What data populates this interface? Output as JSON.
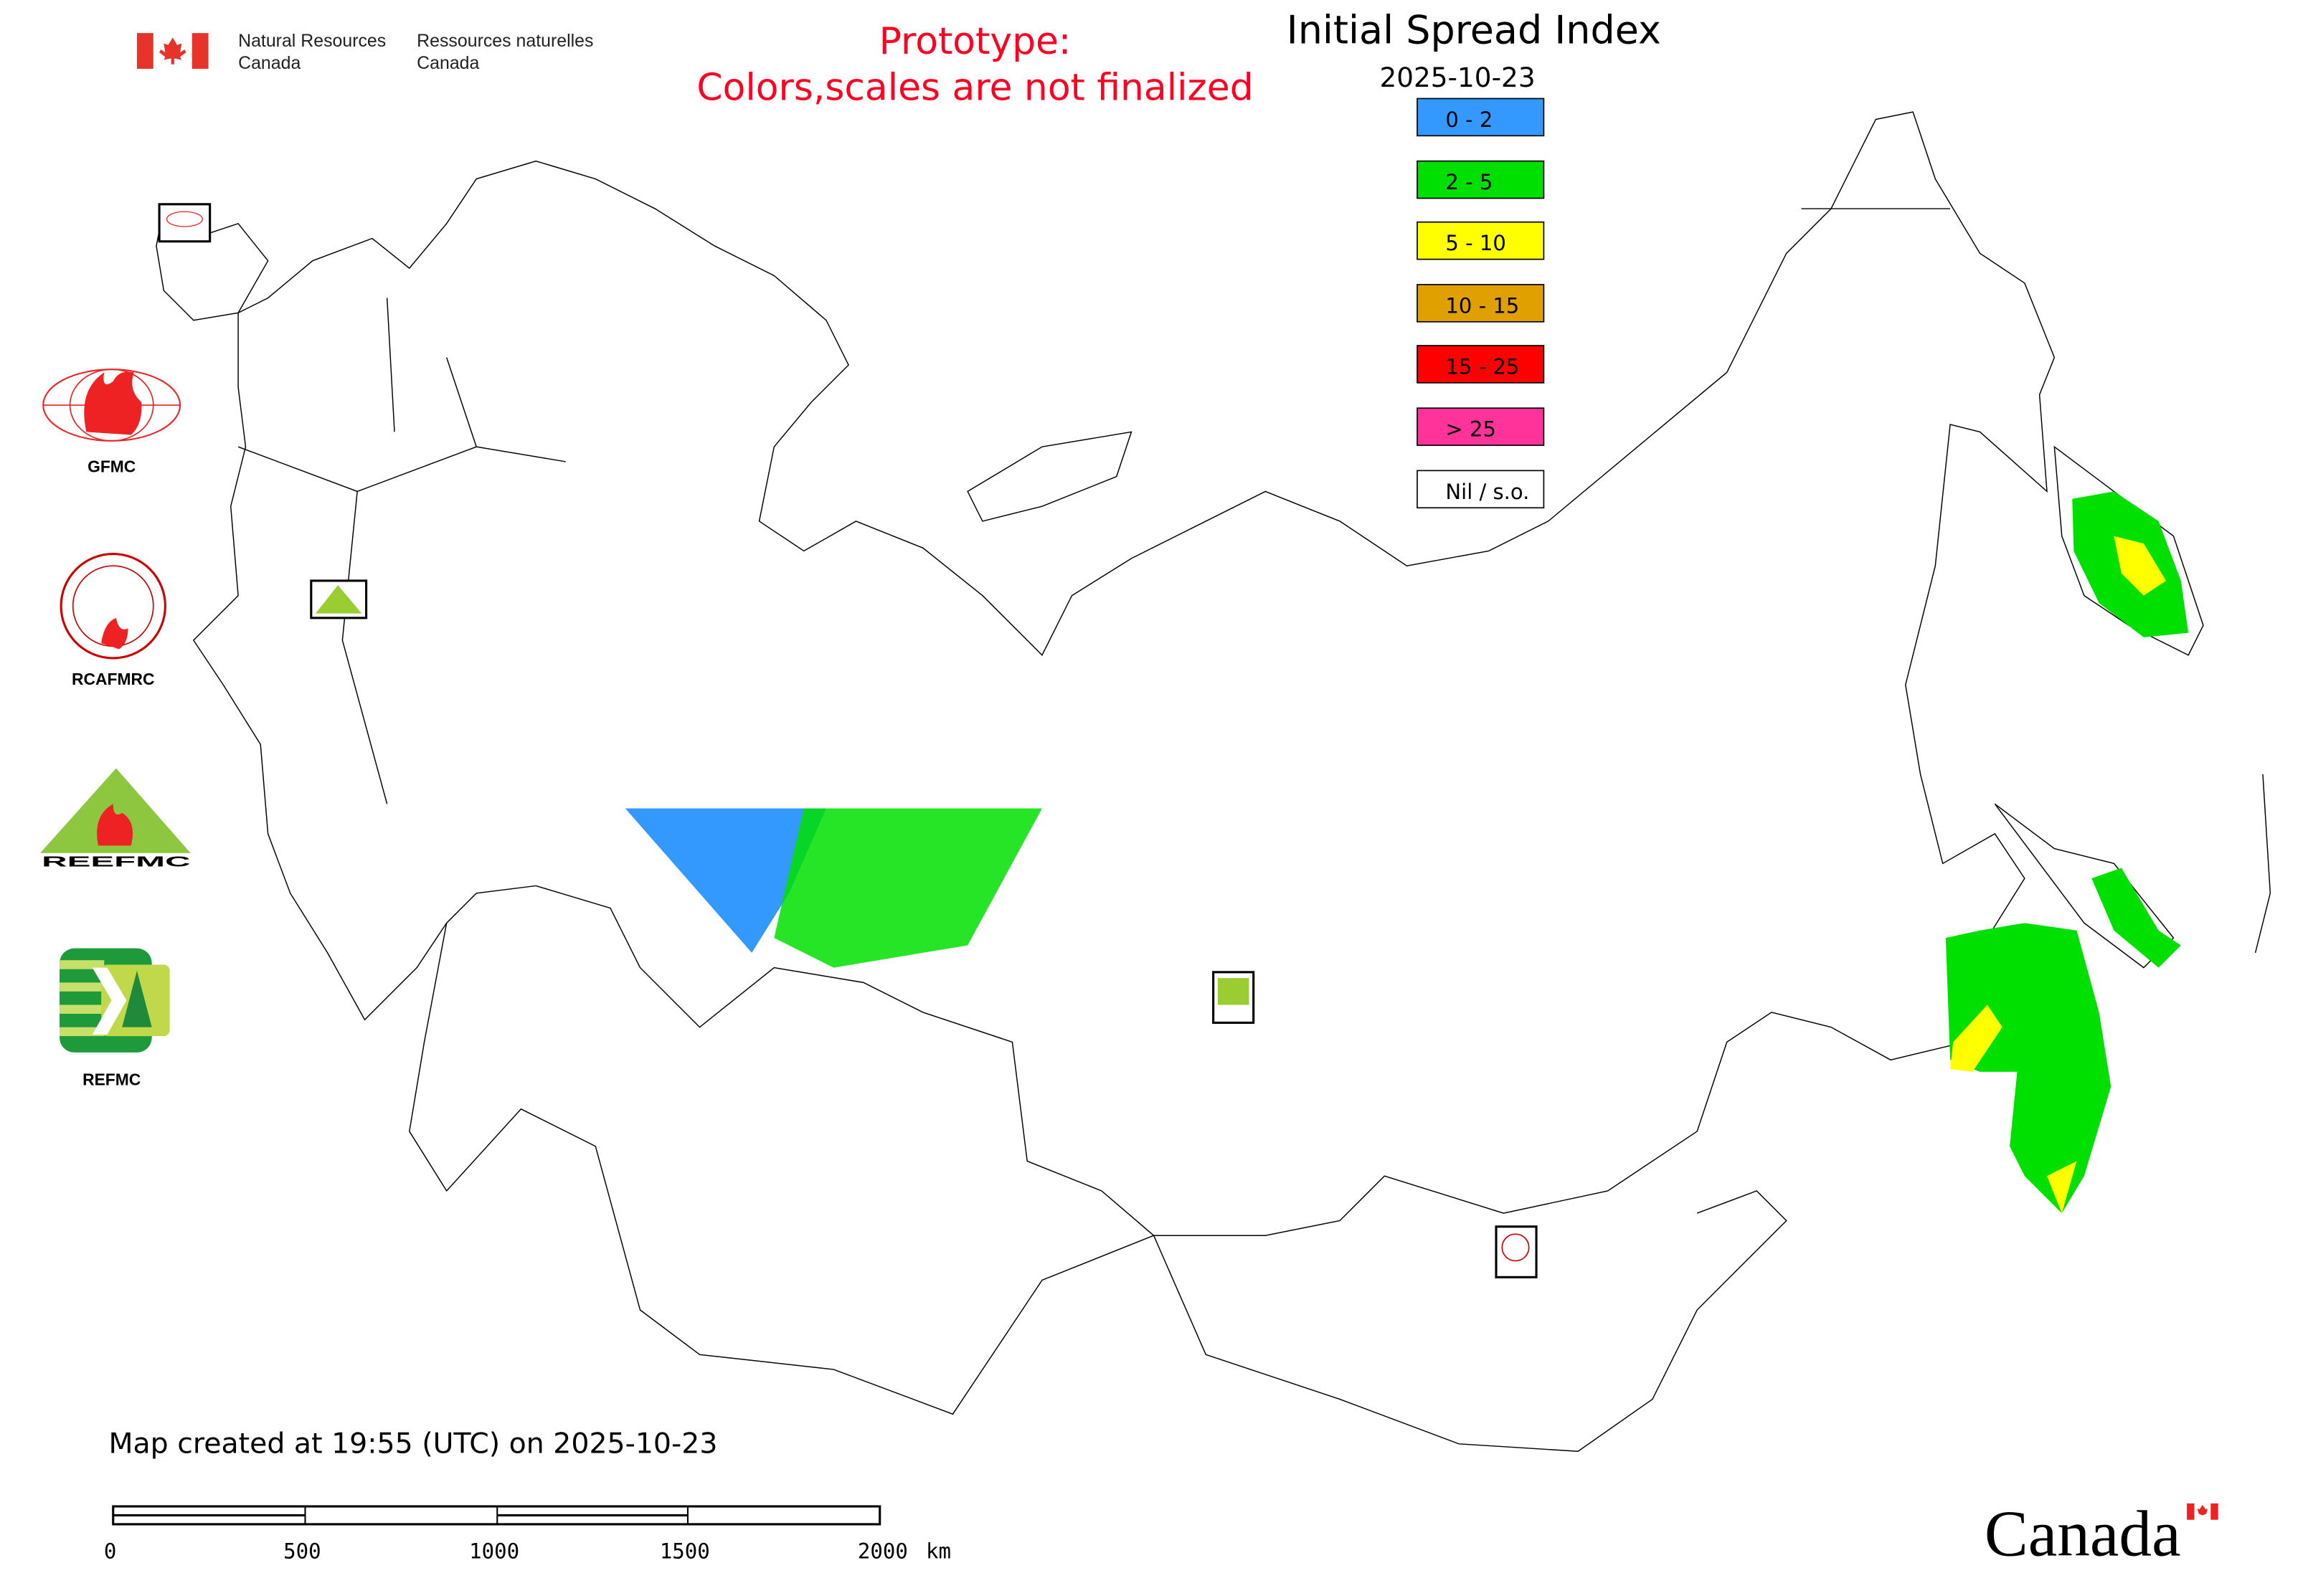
{
  "header": {
    "agency_en_line1": "Natural Resources",
    "agency_en_line2": "Canada",
    "agency_fr_line1": "Ressources naturelles",
    "agency_fr_line2": "Canada",
    "warning_line1": "Prototype:",
    "warning_line2": "Colors,scales are not finalized",
    "warning_color": "#ff0022"
  },
  "title": "Initial Spread Index",
  "date": "2025-10-23",
  "legend": [
    {
      "label": "0 - 2",
      "color": "#3399ff"
    },
    {
      "label": "2 - 5",
      "color": "#00e000"
    },
    {
      "label": "5 - 10",
      "color": "#ffff00"
    },
    {
      "label": "10 - 15",
      "color": "#e0a000"
    },
    {
      "label": "15 - 25",
      "color": "#ff0000"
    },
    {
      "label": "> 25",
      "color": "#ff3399"
    },
    {
      "label": "Nil / s.o.",
      "color": "#ffffff"
    }
  ],
  "logos": [
    {
      "label": "GFMC"
    },
    {
      "label": "RCAFMRC"
    },
    {
      "label": "REEFMC"
    },
    {
      "label": "REFMC"
    }
  ],
  "footer": {
    "created": "Map created at 19:55 (UTC) on 2025-10-23",
    "scale_ticks": [
      "0",
      "500",
      "1000",
      "1500",
      "2000"
    ],
    "scale_unit": "km",
    "wordmark": "Canada"
  }
}
